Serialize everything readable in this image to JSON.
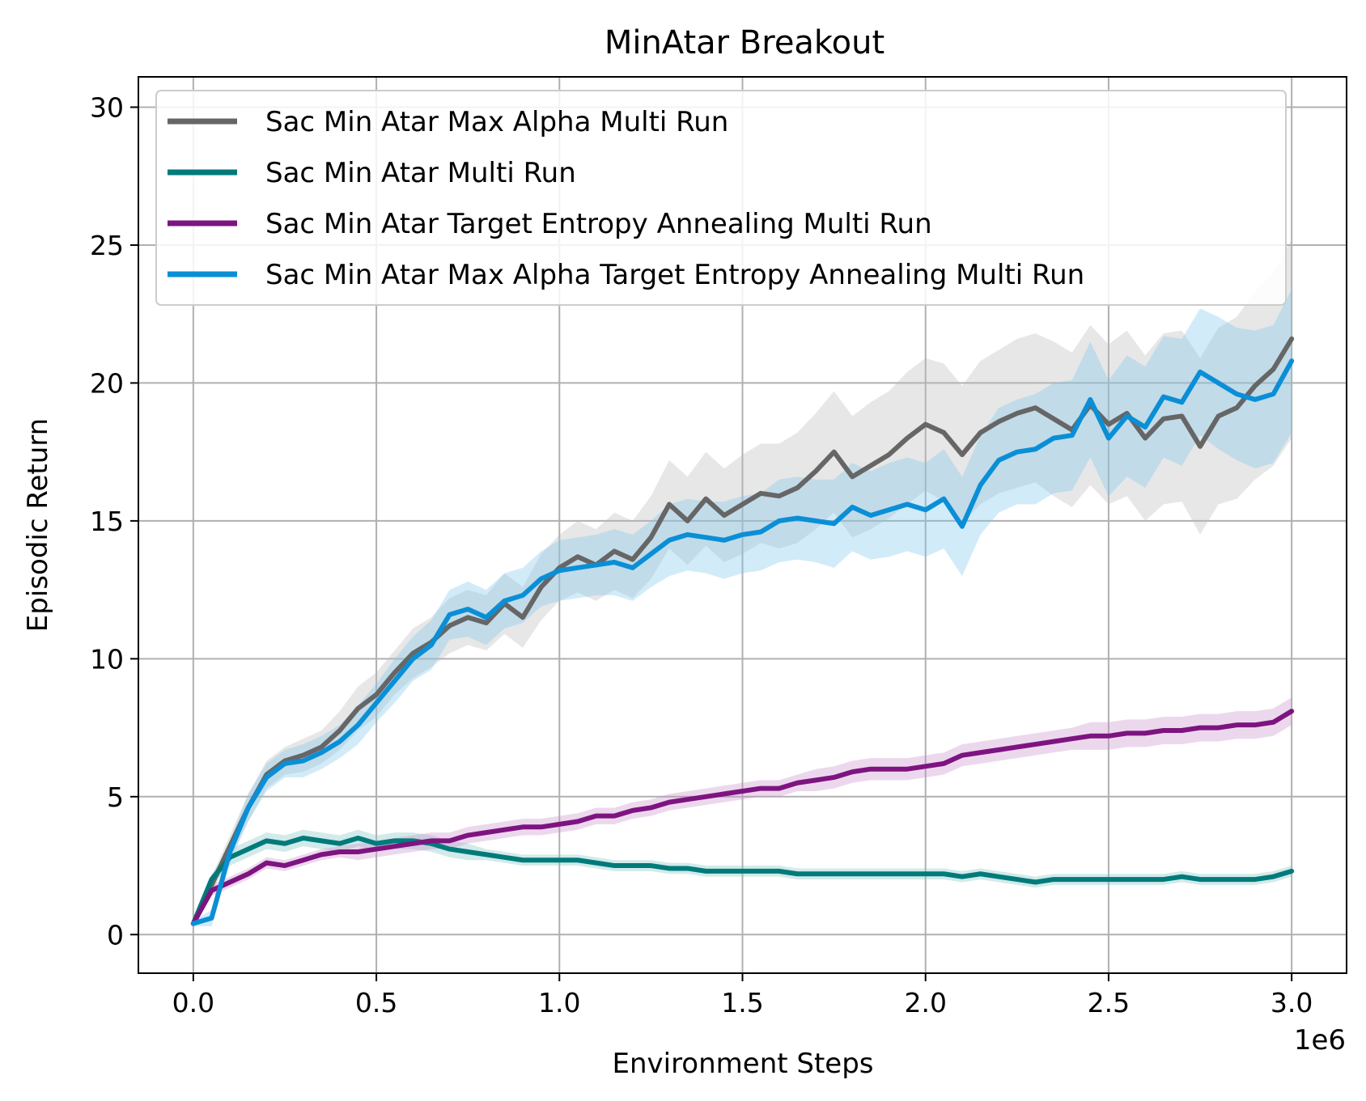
{
  "chart_data": {
    "type": "line",
    "title": "MinAtar Breakout",
    "xlabel": "Environment Steps",
    "ylabel": "Episodic Return",
    "x_offset_label": "1e6",
    "xlim": [
      -0.15,
      3.15
    ],
    "ylim": [
      -1.4,
      31.1
    ],
    "xticks": [
      0.0,
      0.5,
      1.0,
      1.5,
      2.0,
      2.5,
      3.0
    ],
    "xtick_labels": [
      "0.0",
      "0.5",
      "1.0",
      "1.5",
      "2.0",
      "2.5",
      "3.0"
    ],
    "yticks": [
      0,
      5,
      10,
      15,
      20,
      25,
      30
    ],
    "ytick_labels": [
      "0",
      "5",
      "10",
      "15",
      "20",
      "25",
      "30"
    ],
    "grid": true,
    "legend_position": "top-left",
    "series": [
      {
        "name": "Sac Min Atar Max Alpha Multi Run",
        "color": "#666666",
        "band_color": "#bbbbbb",
        "x": [
          0.0,
          0.05,
          0.1,
          0.15,
          0.2,
          0.25,
          0.3,
          0.35,
          0.4,
          0.45,
          0.5,
          0.55,
          0.6,
          0.65,
          0.7,
          0.75,
          0.8,
          0.85,
          0.9,
          0.95,
          1.0,
          1.05,
          1.1,
          1.15,
          1.2,
          1.25,
          1.3,
          1.35,
          1.4,
          1.45,
          1.5,
          1.55,
          1.6,
          1.65,
          1.7,
          1.75,
          1.8,
          1.85,
          1.9,
          1.95,
          2.0,
          2.05,
          2.1,
          2.15,
          2.2,
          2.25,
          2.3,
          2.35,
          2.4,
          2.45,
          2.5,
          2.55,
          2.6,
          2.65,
          2.7,
          2.75,
          2.8,
          2.85,
          2.9,
          2.95,
          3.0
        ],
        "y": [
          0.4,
          1.8,
          3.2,
          4.6,
          5.8,
          6.3,
          6.5,
          6.8,
          7.4,
          8.2,
          8.7,
          9.5,
          10.2,
          10.6,
          11.2,
          11.5,
          11.3,
          12.0,
          11.5,
          12.6,
          13.3,
          13.7,
          13.4,
          13.9,
          13.6,
          14.4,
          15.6,
          15.0,
          15.8,
          15.2,
          15.6,
          16.0,
          15.9,
          16.2,
          16.8,
          17.5,
          16.6,
          17.0,
          17.4,
          18.0,
          18.5,
          18.2,
          17.4,
          18.2,
          18.6,
          18.9,
          19.1,
          18.7,
          18.3,
          19.2,
          18.5,
          18.9,
          18.0,
          18.7,
          18.8,
          17.7,
          18.8,
          19.1,
          19.9,
          20.5,
          21.6
        ],
        "spread": [
          0.1,
          0.3,
          0.4,
          0.5,
          0.5,
          0.5,
          0.6,
          0.6,
          0.7,
          0.8,
          0.8,
          0.8,
          0.9,
          0.9,
          1.0,
          1.0,
          1.0,
          1.1,
          1.1,
          1.2,
          1.2,
          1.3,
          1.3,
          1.4,
          1.4,
          1.5,
          1.6,
          1.6,
          1.7,
          1.7,
          1.8,
          1.8,
          1.9,
          2.0,
          2.1,
          2.2,
          2.2,
          2.3,
          2.3,
          2.4,
          2.4,
          2.5,
          2.5,
          2.6,
          2.6,
          2.7,
          2.7,
          2.8,
          2.8,
          2.9,
          2.9,
          3.0,
          3.0,
          3.1,
          3.1,
          3.2,
          3.2,
          3.3,
          3.4,
          3.5,
          3.6
        ]
      },
      {
        "name": "Sac Min Atar Multi Run",
        "color": "#007a7a",
        "band_color": "#7fc4c4",
        "x": [
          0.0,
          0.05,
          0.1,
          0.15,
          0.2,
          0.25,
          0.3,
          0.35,
          0.4,
          0.45,
          0.5,
          0.55,
          0.6,
          0.65,
          0.7,
          0.75,
          0.8,
          0.85,
          0.9,
          0.95,
          1.0,
          1.05,
          1.1,
          1.15,
          1.2,
          1.25,
          1.3,
          1.35,
          1.4,
          1.45,
          1.5,
          1.55,
          1.6,
          1.65,
          1.7,
          1.75,
          1.8,
          1.85,
          1.9,
          1.95,
          2.0,
          2.05,
          2.1,
          2.15,
          2.2,
          2.25,
          2.3,
          2.35,
          2.4,
          2.45,
          2.5,
          2.55,
          2.6,
          2.65,
          2.7,
          2.75,
          2.8,
          2.85,
          2.9,
          2.95,
          3.0
        ],
        "y": [
          0.4,
          2.0,
          2.8,
          3.1,
          3.4,
          3.3,
          3.5,
          3.4,
          3.3,
          3.5,
          3.3,
          3.4,
          3.4,
          3.3,
          3.1,
          3.0,
          2.9,
          2.8,
          2.7,
          2.7,
          2.7,
          2.7,
          2.6,
          2.5,
          2.5,
          2.5,
          2.4,
          2.4,
          2.3,
          2.3,
          2.3,
          2.3,
          2.3,
          2.2,
          2.2,
          2.2,
          2.2,
          2.2,
          2.2,
          2.2,
          2.2,
          2.2,
          2.1,
          2.2,
          2.1,
          2.0,
          1.9,
          2.0,
          2.0,
          2.0,
          2.0,
          2.0,
          2.0,
          2.0,
          2.1,
          2.0,
          2.0,
          2.0,
          2.0,
          2.1,
          2.3
        ],
        "spread": [
          0.1,
          0.2,
          0.3,
          0.3,
          0.3,
          0.3,
          0.3,
          0.3,
          0.3,
          0.3,
          0.3,
          0.3,
          0.3,
          0.3,
          0.3,
          0.3,
          0.2,
          0.2,
          0.2,
          0.2,
          0.2,
          0.2,
          0.2,
          0.2,
          0.2,
          0.2,
          0.2,
          0.2,
          0.2,
          0.2,
          0.2,
          0.2,
          0.2,
          0.2,
          0.2,
          0.2,
          0.2,
          0.2,
          0.2,
          0.2,
          0.2,
          0.2,
          0.2,
          0.2,
          0.2,
          0.2,
          0.2,
          0.2,
          0.2,
          0.2,
          0.2,
          0.2,
          0.2,
          0.2,
          0.2,
          0.2,
          0.2,
          0.2,
          0.2,
          0.2,
          0.2
        ]
      },
      {
        "name": "Sac Min Atar Target Entropy Annealing Multi Run",
        "color": "#7d1480",
        "band_color": "#c98ecb",
        "x": [
          0.0,
          0.05,
          0.1,
          0.15,
          0.2,
          0.25,
          0.3,
          0.35,
          0.4,
          0.45,
          0.5,
          0.55,
          0.6,
          0.65,
          0.7,
          0.75,
          0.8,
          0.85,
          0.9,
          0.95,
          1.0,
          1.05,
          1.1,
          1.15,
          1.2,
          1.25,
          1.3,
          1.35,
          1.4,
          1.45,
          1.5,
          1.55,
          1.6,
          1.65,
          1.7,
          1.75,
          1.8,
          1.85,
          1.9,
          1.95,
          2.0,
          2.05,
          2.1,
          2.15,
          2.2,
          2.25,
          2.3,
          2.35,
          2.4,
          2.45,
          2.5,
          2.55,
          2.6,
          2.65,
          2.7,
          2.75,
          2.8,
          2.85,
          2.9,
          2.95,
          3.0
        ],
        "y": [
          0.4,
          1.6,
          1.9,
          2.2,
          2.6,
          2.5,
          2.7,
          2.9,
          3.0,
          3.0,
          3.1,
          3.2,
          3.3,
          3.4,
          3.4,
          3.6,
          3.7,
          3.8,
          3.9,
          3.9,
          4.0,
          4.1,
          4.3,
          4.3,
          4.5,
          4.6,
          4.8,
          4.9,
          5.0,
          5.1,
          5.2,
          5.3,
          5.3,
          5.5,
          5.6,
          5.7,
          5.9,
          6.0,
          6.0,
          6.0,
          6.1,
          6.2,
          6.5,
          6.6,
          6.7,
          6.8,
          6.9,
          7.0,
          7.1,
          7.2,
          7.2,
          7.3,
          7.3,
          7.4,
          7.4,
          7.5,
          7.5,
          7.6,
          7.6,
          7.7,
          8.1
        ],
        "spread": [
          0.1,
          0.2,
          0.2,
          0.2,
          0.2,
          0.2,
          0.2,
          0.2,
          0.2,
          0.3,
          0.3,
          0.3,
          0.3,
          0.3,
          0.3,
          0.3,
          0.3,
          0.3,
          0.3,
          0.3,
          0.3,
          0.3,
          0.3,
          0.3,
          0.3,
          0.3,
          0.3,
          0.3,
          0.3,
          0.3,
          0.3,
          0.3,
          0.3,
          0.3,
          0.4,
          0.4,
          0.4,
          0.4,
          0.4,
          0.4,
          0.4,
          0.4,
          0.4,
          0.4,
          0.4,
          0.4,
          0.4,
          0.4,
          0.4,
          0.5,
          0.5,
          0.5,
          0.5,
          0.5,
          0.5,
          0.5,
          0.5,
          0.5,
          0.5,
          0.5,
          0.5
        ]
      },
      {
        "name": "Sac Min Atar Max Alpha Target Entropy Annealing Multi Run",
        "color": "#0a8fd6",
        "band_color": "#7ec6ee",
        "x": [
          0.0,
          0.05,
          0.1,
          0.15,
          0.2,
          0.25,
          0.3,
          0.35,
          0.4,
          0.45,
          0.5,
          0.55,
          0.6,
          0.65,
          0.7,
          0.75,
          0.8,
          0.85,
          0.9,
          0.95,
          1.0,
          1.05,
          1.1,
          1.15,
          1.2,
          1.25,
          1.3,
          1.35,
          1.4,
          1.45,
          1.5,
          1.55,
          1.6,
          1.65,
          1.7,
          1.75,
          1.8,
          1.85,
          1.9,
          1.95,
          2.0,
          2.05,
          2.1,
          2.15,
          2.2,
          2.25,
          2.3,
          2.35,
          2.4,
          2.45,
          2.5,
          2.55,
          2.6,
          2.65,
          2.7,
          2.75,
          2.8,
          2.85,
          2.9,
          2.95,
          3.0
        ],
        "y": [
          0.4,
          0.6,
          3.0,
          4.6,
          5.7,
          6.2,
          6.3,
          6.6,
          7.0,
          7.6,
          8.4,
          9.2,
          10.0,
          10.5,
          11.6,
          11.8,
          11.5,
          12.1,
          12.3,
          12.9,
          13.2,
          13.3,
          13.4,
          13.5,
          13.3,
          13.8,
          14.3,
          14.5,
          14.4,
          14.3,
          14.5,
          14.6,
          15.0,
          15.1,
          15.0,
          14.9,
          15.5,
          15.2,
          15.4,
          15.6,
          15.4,
          15.8,
          14.8,
          16.3,
          17.2,
          17.5,
          17.6,
          18.0,
          18.1,
          19.4,
          18.0,
          18.8,
          18.4,
          19.5,
          19.3,
          20.4,
          20.0,
          19.6,
          19.4,
          19.6,
          20.8
        ],
        "spread": [
          0.1,
          0.3,
          0.4,
          0.5,
          0.5,
          0.5,
          0.6,
          0.6,
          0.6,
          0.7,
          0.7,
          0.8,
          0.8,
          0.9,
          0.9,
          1.0,
          1.0,
          1.0,
          1.0,
          1.0,
          1.1,
          1.1,
          1.1,
          1.2,
          1.2,
          1.2,
          1.3,
          1.3,
          1.3,
          1.4,
          1.4,
          1.4,
          1.5,
          1.5,
          1.5,
          1.6,
          1.6,
          1.6,
          1.7,
          1.7,
          1.7,
          1.8,
          1.8,
          1.8,
          1.9,
          1.9,
          2.0,
          2.0,
          2.0,
          2.1,
          2.1,
          2.2,
          2.2,
          2.2,
          2.3,
          2.3,
          2.4,
          2.4,
          2.5,
          2.5,
          2.6
        ]
      }
    ]
  }
}
